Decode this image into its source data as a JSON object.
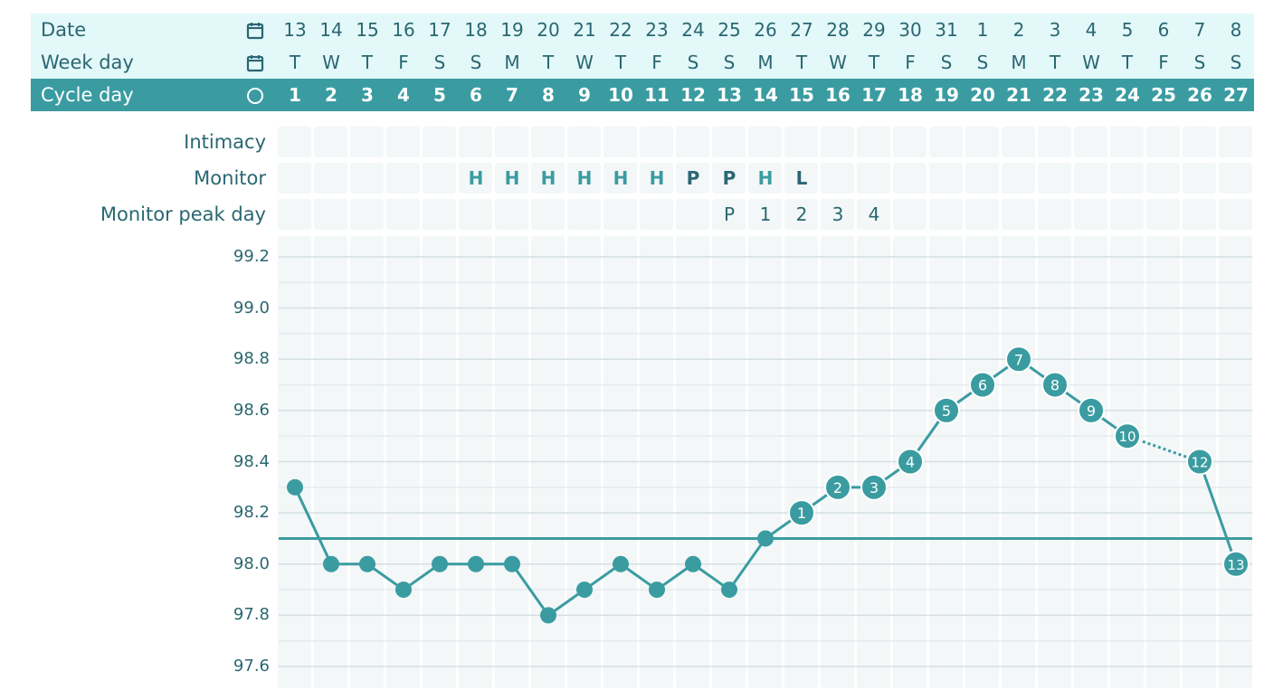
{
  "header": {
    "date_label": "Date",
    "weekday_label": "Week day",
    "cycleday_label": "Cycle day",
    "date_icon": "calendar-icon",
    "weekday_icon": "calendar-icon",
    "cycleday_icon": "circle-icon"
  },
  "rows": {
    "intimacy_label": "Intimacy",
    "monitor_label": "Monitor",
    "monitor_peak_label": "Monitor peak day"
  },
  "colors": {
    "teal": "#3a9ca1",
    "text": "#2a6772",
    "light_band": "#e3f8f9",
    "grid": "#f3f7f8"
  },
  "chart_data": {
    "type": "line",
    "dates": [
      "13",
      "14",
      "15",
      "16",
      "17",
      "18",
      "19",
      "20",
      "21",
      "22",
      "23",
      "24",
      "25",
      "26",
      "27",
      "28",
      "29",
      "30",
      "31",
      "1",
      "2",
      "3",
      "4",
      "5",
      "6",
      "7",
      "8"
    ],
    "weekdays": [
      "T",
      "W",
      "T",
      "F",
      "S",
      "S",
      "M",
      "T",
      "W",
      "T",
      "F",
      "S",
      "S",
      "M",
      "T",
      "W",
      "T",
      "F",
      "S",
      "S",
      "M",
      "T",
      "W",
      "T",
      "F",
      "S",
      "S"
    ],
    "cycle_days": [
      "1",
      "2",
      "3",
      "4",
      "5",
      "6",
      "7",
      "8",
      "9",
      "10",
      "11",
      "12",
      "13",
      "14",
      "15",
      "16",
      "17",
      "18",
      "19",
      "20",
      "21",
      "22",
      "23",
      "24",
      "25",
      "26",
      "27"
    ],
    "monitor": [
      "",
      "",
      "",
      "",
      "",
      "H",
      "H",
      "H",
      "H",
      "H",
      "H",
      "P",
      "P",
      "H",
      "L",
      "",
      "",
      "",
      "",
      "",
      "",
      "",
      "",
      "",
      "",
      "",
      ""
    ],
    "monitor_peak_day": [
      "",
      "",
      "",
      "",
      "",
      "",
      "",
      "",
      "",
      "",
      "",
      "",
      "P",
      "1",
      "2",
      "3",
      "4",
      "",
      "",
      "",
      "",
      "",
      "",
      "",
      "",
      "",
      ""
    ],
    "temperatures": [
      98.3,
      98.0,
      98.0,
      97.9,
      98.0,
      98.0,
      98.0,
      97.8,
      97.9,
      98.0,
      97.9,
      98.0,
      97.9,
      98.1,
      98.2,
      98.3,
      98.3,
      98.4,
      98.6,
      98.7,
      98.8,
      98.7,
      98.6,
      98.5,
      null,
      98.4,
      98.0
    ],
    "point_labels": [
      "",
      "",
      "",
      "",
      "",
      "",
      "",
      "",
      "",
      "",
      "",
      "",
      "",
      "",
      "1",
      "2",
      "3",
      "4",
      "5",
      "6",
      "7",
      "8",
      "9",
      "10",
      "",
      "12",
      "13"
    ],
    "coverline": 98.1,
    "y_ticks": [
      "99.2",
      "99.0",
      "98.8",
      "98.6",
      "98.4",
      "98.2",
      "98.0",
      "97.8",
      "97.6"
    ],
    "ylim": [
      97.55,
      99.28
    ],
    "dotted_segment": [
      23,
      25
    ],
    "grid": true
  }
}
